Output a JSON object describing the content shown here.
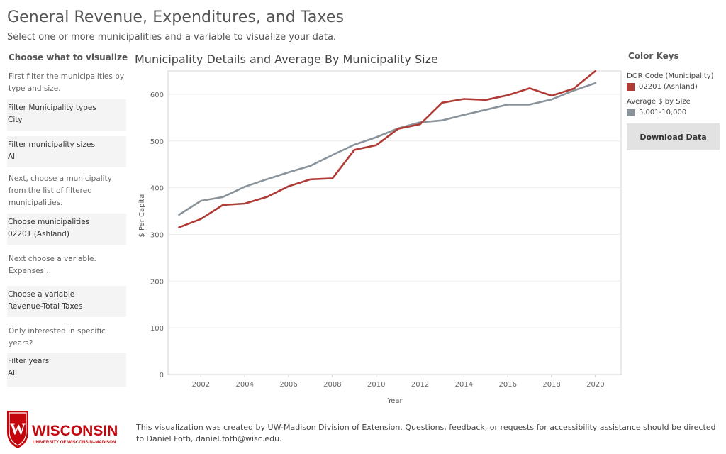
{
  "header": {
    "title": "General Revenue, Expenditures, and Taxes",
    "subtitle": "Select one or more municipalities and a variable to visualize your data."
  },
  "left_panel": {
    "heading": "Choose what to visualize",
    "hint1": "First filter the municipalities by type and size.",
    "filter_types": {
      "label": "Filter Municipality types",
      "value": "City"
    },
    "filter_sizes": {
      "label": "Filter municipality sizes",
      "value": "All"
    },
    "hint2": "Next, choose a municipality from the list of filtered municipalities.",
    "choose_municipalities": {
      "label": "Choose municipalities",
      "value": "02201 (Ashland)"
    },
    "hint3": "Next choose a variable. Expenses ..",
    "choose_variable": {
      "label": "Choose a variable",
      "value": "Revenue-Total Taxes"
    },
    "hint4": "Only interested in specific years?",
    "filter_years": {
      "label": "Filter years",
      "value": "All"
    }
  },
  "chart_title": "Municipality Details and Average By Municipality Size",
  "right_panel": {
    "heading": "Color Keys",
    "key1_title": "DOR Code (Municipality)",
    "key1_item": "02201 (Ashland)",
    "key1_color": "#b03a35",
    "key2_title": "Average $ by Size",
    "key2_item": "5,001-10,000",
    "key2_color": "#8a939a",
    "download_label": "Download Data"
  },
  "logo": {
    "wordmark": "WISCONSIN",
    "tagline": "UNIVERSITY OF WISCONSIN–MADISON",
    "crest_letter": "W"
  },
  "footer": {
    "text": "This visualization was created by UW-Madison Division of Extension. Questions, feedback, or requests for accessibility assistance should be directed to Daniel Foth, daniel.foth@wisc.edu."
  },
  "chart_data": {
    "type": "line",
    "xlabel": "Year",
    "ylabel": "$ Per Capita",
    "xlim": [
      2000.5,
      2021.2
    ],
    "ylim": [
      0,
      650
    ],
    "x_ticks": [
      2002,
      2004,
      2006,
      2008,
      2010,
      2012,
      2014,
      2016,
      2018,
      2020
    ],
    "y_ticks": [
      0,
      100,
      200,
      300,
      400,
      500,
      600
    ],
    "grid": true,
    "x": [
      2001,
      2002,
      2003,
      2004,
      2005,
      2006,
      2007,
      2008,
      2009,
      2010,
      2011,
      2012,
      2013,
      2014,
      2015,
      2016,
      2017,
      2018,
      2019,
      2020
    ],
    "series": [
      {
        "name": "02201 (Ashland)",
        "color": "#b03a35",
        "values": [
          315,
          333,
          363,
          366,
          380,
          403,
          418,
          420,
          481,
          491,
          526,
          536,
          582,
          590,
          588,
          598,
          613,
          597,
          612,
          650
        ]
      },
      {
        "name": "5,001-10,000",
        "color": "#8a939a",
        "values": [
          342,
          372,
          380,
          402,
          418,
          433,
          447,
          470,
          492,
          508,
          527,
          540,
          544,
          556,
          567,
          578,
          578,
          589,
          608,
          624
        ]
      }
    ]
  }
}
